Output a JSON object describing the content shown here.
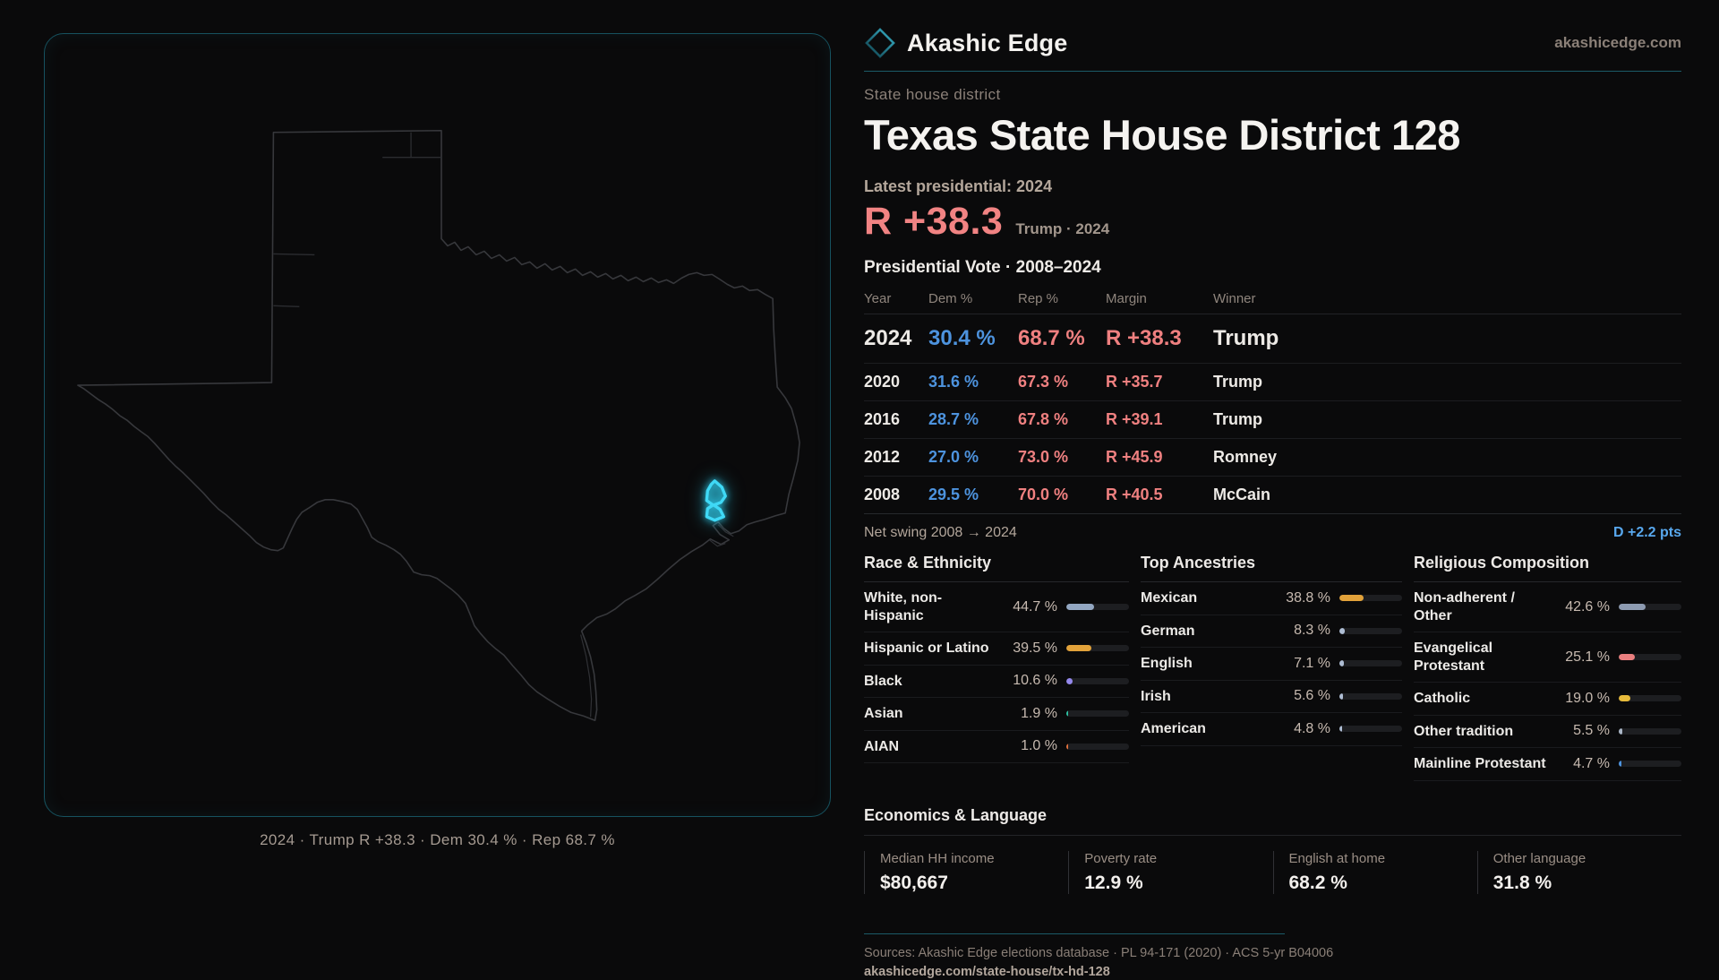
{
  "brand": {
    "name": "Akashic Edge",
    "site": "akashicedge.com"
  },
  "page": {
    "kicker": "State house district",
    "title": "Texas State House District 128"
  },
  "latest": {
    "label": "Latest presidential: 2024",
    "margin": "R +38.3",
    "context": "Trump · 2024"
  },
  "table": {
    "title": "Presidential Vote · 2008–2024",
    "columns": [
      "Year",
      "Dem %",
      "Rep %",
      "Margin",
      "Winner"
    ],
    "rows": [
      {
        "year": "2024",
        "dem": "30.4 %",
        "rep": "68.7 %",
        "margin": "R +38.3",
        "winner": "Trump"
      },
      {
        "year": "2020",
        "dem": "31.6 %",
        "rep": "67.3 %",
        "margin": "R +35.7",
        "winner": "Trump"
      },
      {
        "year": "2016",
        "dem": "28.7 %",
        "rep": "67.8 %",
        "margin": "R +39.1",
        "winner": "Trump"
      },
      {
        "year": "2012",
        "dem": "27.0 %",
        "rep": "73.0 %",
        "margin": "R +45.9",
        "winner": "Romney"
      },
      {
        "year": "2008",
        "dem": "29.5 %",
        "rep": "70.0 %",
        "margin": "R +40.5",
        "winner": "McCain"
      }
    ]
  },
  "swing": {
    "label": "Net swing 2008 → 2024",
    "value": "D +2.2 pts"
  },
  "demographics": {
    "race": {
      "title": "Race & Ethnicity",
      "rows": [
        {
          "label": "White, non-Hispanic",
          "value": "44.7 %",
          "pct": 44.7,
          "color": "#93a7c2"
        },
        {
          "label": "Hispanic or Latino",
          "value": "39.5 %",
          "pct": 39.5,
          "color": "#e2a23a"
        },
        {
          "label": "Black",
          "value": "10.6 %",
          "pct": 10.6,
          "color": "#9488ec"
        },
        {
          "label": "Asian",
          "value": "1.9 %",
          "pct": 1.9,
          "color": "#2dc1a2"
        },
        {
          "label": "AIAN",
          "value": "1.0 %",
          "pct": 1.0,
          "color": "#e1703c"
        }
      ]
    },
    "ancestry": {
      "title": "Top Ancestries",
      "rows": [
        {
          "label": "Mexican",
          "value": "38.8 %",
          "pct": 38.8,
          "color": "#e2a23a"
        },
        {
          "label": "German",
          "value": "8.3 %",
          "pct": 8.3,
          "color": "#aebdd3"
        },
        {
          "label": "English",
          "value": "7.1 %",
          "pct": 7.1,
          "color": "#aebdd3"
        },
        {
          "label": "Irish",
          "value": "5.6 %",
          "pct": 5.6,
          "color": "#aebdd3"
        },
        {
          "label": "American",
          "value": "4.8 %",
          "pct": 4.8,
          "color": "#aebdd3"
        }
      ]
    },
    "religion": {
      "title": "Religious Composition",
      "rows": [
        {
          "label": "Non-adherent / Other",
          "value": "42.6 %",
          "pct": 42.6,
          "color": "#8d9bb1"
        },
        {
          "label": "Evangelical Protestant",
          "value": "25.1 %",
          "pct": 25.1,
          "color": "#ea7f7f"
        },
        {
          "label": "Catholic",
          "value": "19.0 %",
          "pct": 19.0,
          "color": "#e7bb3b"
        },
        {
          "label": "Other tradition",
          "value": "5.5 %",
          "pct": 5.5,
          "color": "#aab6c6"
        },
        {
          "label": "Mainline Protestant",
          "value": "4.7 %",
          "pct": 4.7,
          "color": "#4d93de"
        }
      ]
    }
  },
  "economics": {
    "title": "Economics & Language",
    "stats": [
      {
        "label": "Median HH income",
        "value": "$80,667"
      },
      {
        "label": "Poverty rate",
        "value": "12.9 %"
      },
      {
        "label": "English at home",
        "value": "68.2 %"
      },
      {
        "label": "Other language",
        "value": "31.8 %"
      }
    ]
  },
  "footer": {
    "sources": "Sources: Akashic Edge elections database · PL 94-171 (2020) · ACS 5-yr B04006",
    "url": "akashicedge.com/state-house/tx-hd-128"
  },
  "map": {
    "caption": "2024 · Trump R +38.3 · Dem 30.4 % · Rep 68.7 %",
    "district_color": "#3fd9f6",
    "outline_color": "#37383c",
    "panel_border": "#16525f"
  }
}
